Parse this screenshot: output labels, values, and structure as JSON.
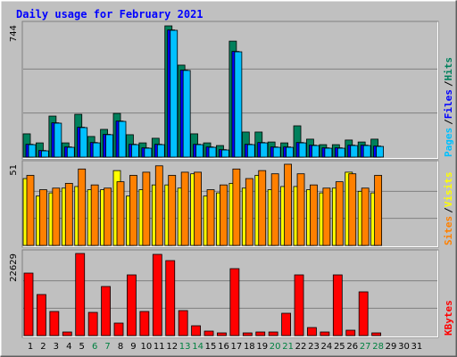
{
  "title": "Daily usage for February 2021",
  "legend_separator": "/",
  "categories": [
    "1",
    "2",
    "3",
    "4",
    "5",
    "6",
    "7",
    "8",
    "9",
    "10",
    "11",
    "12",
    "13",
    "14",
    "15",
    "16",
    "17",
    "18",
    "19",
    "20",
    "21",
    "22",
    "23",
    "24",
    "25",
    "26",
    "27",
    "28",
    "29",
    "30",
    "31"
  ],
  "category_colors": [
    "#000000",
    "#000000",
    "#000000",
    "#000000",
    "#000000",
    "#008040",
    "#008040",
    "#000000",
    "#000000",
    "#000000",
    "#000000",
    "#000000",
    "#008040",
    "#008040",
    "#000000",
    "#000000",
    "#000000",
    "#000000",
    "#000000",
    "#008040",
    "#008040",
    "#000000",
    "#000000",
    "#000000",
    "#000000",
    "#000000",
    "#008040",
    "#008040",
    "#000000",
    "#000000",
    "#000000"
  ],
  "chart_data": [
    {
      "type": "bar",
      "ylim": [
        0,
        744
      ],
      "yticks": [
        744
      ],
      "series": [
        {
          "name": "Hits",
          "color": "#00805c",
          "values": [
            131,
            80,
            231,
            80,
            241,
            116,
            156,
            246,
            126,
            80,
            106,
            739,
            518,
            131,
            80,
            65,
            653,
            141,
            141,
            85,
            80,
            176,
            101,
            70,
            70,
            96,
            85,
            101,
            null,
            null,
            null
          ]
        },
        {
          "name": "Files",
          "color": "#0000ff",
          "values": [
            72,
            37,
            193,
            57,
            168,
            82,
            128,
            203,
            72,
            52,
            72,
            716,
            490,
            72,
            57,
            42,
            595,
            72,
            82,
            57,
            57,
            82,
            67,
            52,
            52,
            67,
            67,
            62,
            null,
            null,
            null
          ]
        },
        {
          "name": "Pages",
          "color": "#00c0ff",
          "values": [
            70,
            35,
            191,
            55,
            166,
            80,
            126,
            201,
            70,
            50,
            70,
            714,
            488,
            70,
            55,
            40,
            593,
            70,
            80,
            55,
            55,
            80,
            65,
            50,
            50,
            65,
            65,
            60,
            null,
            null,
            null
          ]
        }
      ]
    },
    {
      "type": "bar",
      "ylim": [
        0,
        51
      ],
      "yticks": [
        51
      ],
      "series": [
        {
          "name": "Visits",
          "color": "#ffff00",
          "values": [
            42,
            31,
            33,
            36,
            37,
            35,
            35,
            47,
            31,
            35,
            38,
            38,
            36,
            45,
            31,
            33,
            39,
            36,
            44,
            35,
            37,
            37,
            35,
            33,
            36,
            46,
            34,
            33,
            null,
            null,
            null
          ]
        },
        {
          "name": "Sites",
          "color": "#ff8000",
          "values": [
            44,
            35,
            36,
            39,
            48,
            38,
            36,
            40,
            44,
            46,
            50,
            44,
            46,
            46,
            35,
            38,
            48,
            42,
            47,
            45,
            51,
            45,
            38,
            36,
            40,
            45,
            36,
            44,
            null,
            null,
            null
          ]
        }
      ]
    },
    {
      "type": "bar",
      "ylim": [
        0,
        22629
      ],
      "yticks": [
        22629
      ],
      "series": [
        {
          "name": "KBytes",
          "color": "#ff0000",
          "values": [
            17218,
            11315,
            6641,
            984,
            22629,
            6395,
            13528,
            3444,
            16726,
            6641,
            22383,
            20661,
            6887,
            2706,
            1230,
            738,
            18448,
            738,
            984,
            984,
            6149,
            16726,
            2214,
            984,
            16726,
            1476,
            12053,
            738,
            null,
            null,
            null
          ]
        }
      ]
    }
  ]
}
